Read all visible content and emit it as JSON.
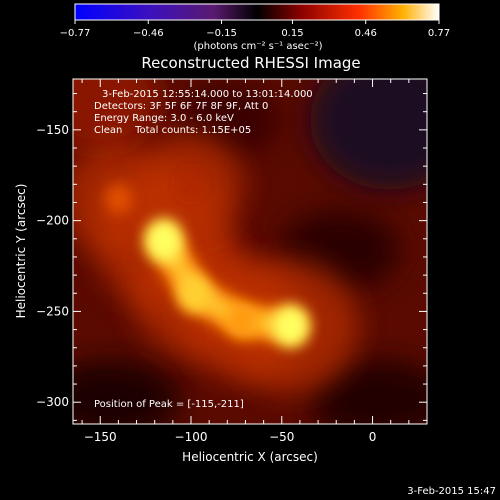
{
  "chart_data": {
    "type": "heatmap",
    "title": "Reconstructed RHESSI Image",
    "xlabel": "Heliocentric X (arcsec)",
    "ylabel": "Heliocentric Y (arcsec)",
    "xlim": [
      -165,
      30
    ],
    "ylim": [
      -312,
      -122
    ],
    "x_ticks": [
      -150,
      -100,
      -50,
      0
    ],
    "y_ticks": [
      -150,
      -200,
      -250,
      -300
    ],
    "colorbar": {
      "range": [
        -0.77,
        0.77
      ],
      "tick_values": [
        -0.77,
        -0.46,
        -0.15,
        0.15,
        0.46,
        0.77
      ],
      "tick_labels": [
        "−0.77",
        "−0.46",
        "−0.15",
        "0.15",
        "0.46",
        "0.77"
      ],
      "unit_label": "(photons cm⁻² s⁻¹ asec⁻²)"
    },
    "annotations": [
      "3-Feb-2015 12:55:14.000 to 13:01:14.000",
      "Detectors: 3F 5F 6F 7F 8F 9F, Att 0",
      "Energy Range: 3.0 - 6.0 keV",
      "Clean    Total counts: 1.15E+05",
      "Position of Peak = [-115,-211]"
    ],
    "peak": [
      -115,
      -211
    ],
    "sources": [
      {
        "x": -115,
        "y": -211,
        "value": 0.77
      },
      {
        "x": -98,
        "y": -240,
        "value": 0.6
      },
      {
        "x": -72,
        "y": -255,
        "value": 0.52
      },
      {
        "x": -45,
        "y": -258,
        "value": 0.74
      },
      {
        "x": -140,
        "y": -188,
        "value": 0.42
      },
      {
        "x": -100,
        "y": -180,
        "value": 0.3
      }
    ],
    "grid": false,
    "footer": "3-Feb-2015 15:47"
  }
}
